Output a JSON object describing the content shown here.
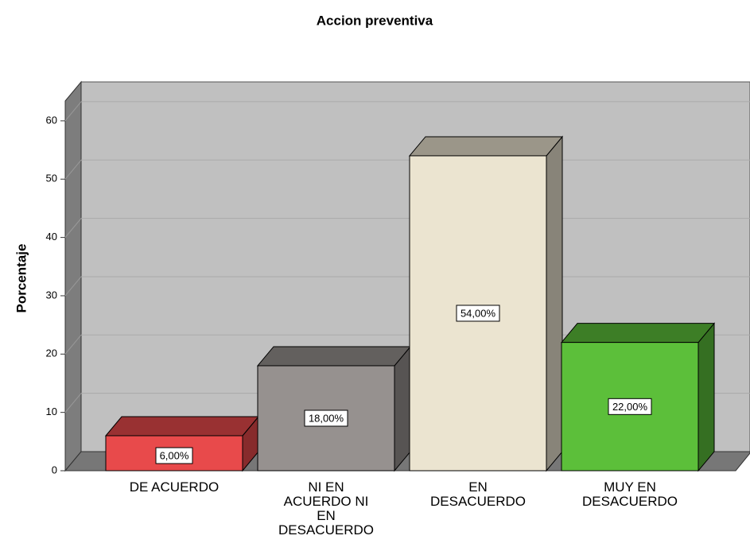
{
  "chart_data": {
    "type": "bar3d",
    "title": "Accion preventiva",
    "y_label": "Porcentaje",
    "categories": [
      "DE ACUERDO",
      "NI EN ACUERDO NI EN DESACUERDO",
      "EN DESACUERDO",
      "MUY EN DESACUERDO"
    ],
    "values": [
      6,
      18,
      54,
      22
    ],
    "value_labels": [
      "6,00%",
      "18,00%",
      "54,00%",
      "22,00%"
    ],
    "colors": [
      "#e84a4b",
      "#96918f",
      "#ebe4d0",
      "#5cbf3a"
    ],
    "ylim": [
      0,
      63.4
    ],
    "yticks": [
      0,
      10,
      20,
      30,
      40,
      50,
      60
    ],
    "grid": true
  }
}
